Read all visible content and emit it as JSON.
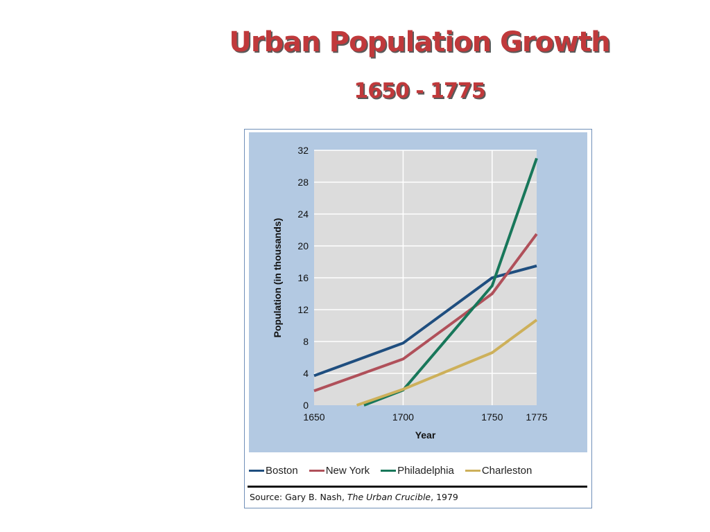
{
  "slide": {
    "title": "Urban Population Growth",
    "subtitle": "1650 - 1775",
    "title_color": "#c0393b"
  },
  "chart_data": {
    "type": "line",
    "xlabel": "Year",
    "ylabel": "Population (in thousands)",
    "x_ticks": [
      "1650",
      "1700",
      "1750",
      "1775"
    ],
    "y_ticks": [
      "0",
      "4",
      "8",
      "12",
      "16",
      "20",
      "24",
      "28",
      "32"
    ],
    "xlim": [
      1650,
      1775
    ],
    "ylim": [
      0,
      32
    ],
    "grid": true,
    "legend_position": "bottom",
    "series": [
      {
        "name": "Boston",
        "color": "#1f4e7f",
        "points": [
          [
            1650,
            3.7
          ],
          [
            1700,
            7.8
          ],
          [
            1750,
            16
          ],
          [
            1775,
            17.5
          ]
        ]
      },
      {
        "name": "New York",
        "color": "#b0505a",
        "points": [
          [
            1650,
            1.8
          ],
          [
            1700,
            5.8
          ],
          [
            1750,
            14
          ],
          [
            1775,
            21.5
          ]
        ]
      },
      {
        "name": "Philadelphia",
        "color": "#18775a",
        "points": [
          [
            1678,
            0
          ],
          [
            1700,
            1.9
          ],
          [
            1750,
            15
          ],
          [
            1775,
            31
          ]
        ]
      },
      {
        "name": "Charleston",
        "color": "#cdb05a",
        "points": [
          [
            1674,
            0
          ],
          [
            1700,
            2
          ],
          [
            1750,
            6.6
          ],
          [
            1775,
            10.7
          ]
        ]
      }
    ]
  },
  "source": {
    "prefix": "Source: Gary B. Nash, ",
    "book": "The Urban Crucible",
    "suffix": ", 1979"
  },
  "colors": {
    "panel_bg": "#b3c9e2",
    "plot_bg": "#dcdcdc",
    "grid": "#ffffff"
  }
}
